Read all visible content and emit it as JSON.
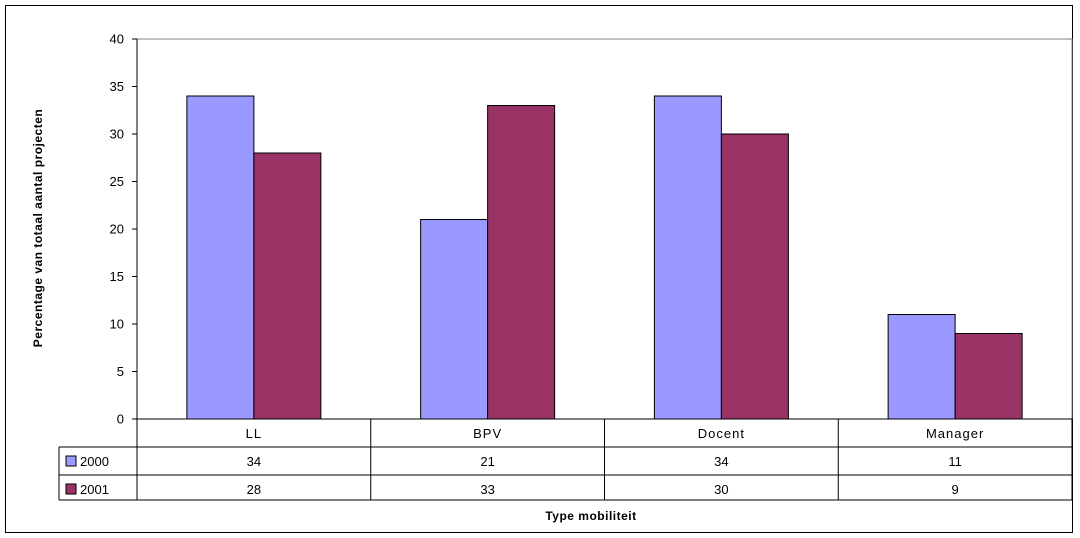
{
  "chart_data": {
    "type": "bar",
    "title": "",
    "xlabel": "Type mobiliteit",
    "ylabel": "Percentage van totaal aantal projecten",
    "ylim": [
      0,
      40
    ],
    "yticks": [
      "0",
      "5",
      "10",
      "15",
      "20",
      "25",
      "30",
      "35",
      "40"
    ],
    "grid": false,
    "legend": "data-table",
    "categories": [
      "LL",
      "BPV",
      "Docent",
      "Manager"
    ],
    "series": [
      {
        "name": "2000",
        "color": "#9999ff",
        "values": [
          34,
          21,
          34,
          11
        ]
      },
      {
        "name": "2001",
        "color": "#993366",
        "values": [
          28,
          33,
          30,
          9
        ]
      }
    ]
  }
}
